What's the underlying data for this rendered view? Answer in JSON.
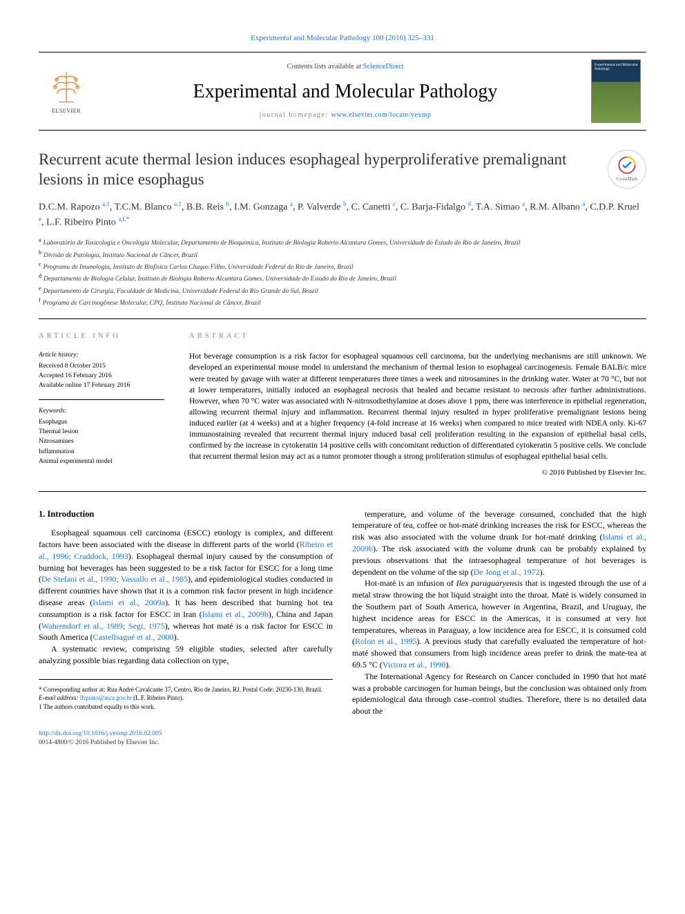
{
  "top_citation": "Experimental and Molecular Pathology 100 (2016) 325–331",
  "masthead": {
    "contents_prefix": "Contents lists available at ",
    "contents_link": "ScienceDirect",
    "journal_name": "Experimental and Molecular Pathology",
    "homepage_label": "journal homepage: ",
    "homepage_url": "www.elsevier.com/locate/yexmp",
    "publisher": "ELSEVIER",
    "cover_text": "Experimental and Molecular Pathology"
  },
  "article": {
    "title": "Recurrent acute thermal lesion induces esophageal hyperproliferative premalignant lesions in mice esophagus",
    "crossmark_label": "CrossMark",
    "authors_html": "D.C.M. Rapozo <sup>a,1</sup>, T.C.M. Blanco <sup>a,1</sup>, B.B. Reis <sup>b</sup>, I.M. Gonzaga <sup>a</sup>, P. Valverde <sup>b</sup>, C. Canetti <sup>c</sup>, C. Barja-Fidalgo <sup>d</sup>, T.A. Simao <sup>a</sup>, R.M. Albano <sup>a</sup>, C.D.P. Kruel <sup>e</sup>, L.F. Ribeiro Pinto <sup>a,f,*</sup>",
    "affiliations": [
      {
        "sup": "a",
        "text": "Laboratório de Toxicologia e Oncologia Molecular, Departamento de Bioquímica, Instituto de Biologia Roberto Alcantara Gomes, Universidade do Estado do Rio de Janeiro, Brazil"
      },
      {
        "sup": "b",
        "text": "Divisão de Patologia, Instituto Nacional de Câncer, Brazil"
      },
      {
        "sup": "c",
        "text": "Programa de Imunologia, Instituto de Biofísica Carlos Chagas Filho, Universidade Federal do Rio de Janeiro, Brazil"
      },
      {
        "sup": "d",
        "text": "Departamento de Biologia Celular, Instituto de Biologia Roberto Alcantara Gomes, Universidade do Estado do Rio de Janeiro, Brazil"
      },
      {
        "sup": "e",
        "text": "Departamento de Cirurgia, Faculdade de Medicina, Universidade Federal do Rio Grande do Sul, Brazil"
      },
      {
        "sup": "f",
        "text": "Programa de Carcinogênese Molecular, CPQ, Instituto Nacional de Câncer, Brazil"
      }
    ]
  },
  "info": {
    "heading": "ARTICLE INFO",
    "history_heading": "Article history:",
    "history": [
      "Received 8 October 2015",
      "Accepted 16 February 2016",
      "Available online 17 February 2016"
    ],
    "keywords_heading": "Keywords:",
    "keywords": [
      "Esophagus",
      "Thermal lesion",
      "Nitrosamines",
      "Inflammation",
      "Animal experimental model"
    ]
  },
  "abstract": {
    "heading": "ABSTRACT",
    "text": "Hot beverage consumption is a risk factor for esophageal squamous cell carcinoma, but the underlying mechanisms are still unknown. We developed an experimental mouse model to understand the mechanism of thermal lesion to esophageal carcinogenesis. Female BALB/c mice were treated by gavage with water at different temperatures three times a week and nitrosamines in the drinking water. Water at 70 °C, but not at lower temperatures, initially induced an esophageal necrosis that healed and became resistant to necrosis after further administrations. However, when 70 °C water was associated with N-nitrosodiethylamine at doses above 1 ppm, there was interference in epithelial regeneration, allowing recurrent thermal injury and inflammation. Recurrent thermal injury resulted in hyper proliferative premalignant lesions being induced earlier (at 4 weeks) and at a higher frequency (4-fold increase at 16 weeks) when compared to mice treated with NDEA only. Ki-67 immunostaining revealed that recurrent thermal injury induced basal cell proliferation resulting in the expansion of epithelial basal cells, confirmed by the increase in cytokeratin 14 positive cells with concomitant reduction of differentiated cytokeratin 5 positive cells. We conclude that recurrent thermal lesion may act as a tumor promoter though a strong proliferation stimulus of esophageal epithelial basal cells.",
    "copyright": "© 2016 Published by Elsevier Inc."
  },
  "body": {
    "section_heading": "1. Introduction",
    "col1": [
      "Esophageal squamous cell carcinoma (ESCC) etiology is complex, and different factors have been associated with the disease in different parts of the world (<span class='cite'>Ribeiro et al., 1996; Craddock, 1993</span>). Esophageal thermal injury caused by the consumption of burning hot beverages has been suggested to be a risk factor for ESCC for a long time (<span class='cite'>De Stefani et al., 1990; Vassallo et al., 1985</span>), and epidemiological studies conducted in different countries have shown that it is a common risk factor present in high incidence disease areas (<span class='cite'>Islami et al., 2009a</span>). It has been described that burning hot tea consumption is a risk factor for ESCC in Iran (<span class='cite'>Islami et al., 2009b</span>), China and Japan (<span class='cite'>Wahrendorf et al., 1989; Segi, 1975</span>), whereas hot maté is a risk factor for ESCC in South America (<span class='cite'>Castellsagué et al., 2000</span>).",
      "A systematic review, comprising 59 eligible studies, selected after carefully analyzing possible bias regarding data collection on type,"
    ],
    "col2": [
      "temperature, and volume of the beverage consumed, concluded that the high temperature of tea, coffee or hot-maté drinking increases the risk for ESCC, whereas the risk was also associated with the volume drunk for hot-maté drinking (<span class='cite'>Islami et al., 2009b</span>). The risk associated with the volume drunk can be probably explained by previous observations that the intraesophageal temperature of hot beverages is dependent on the volume of the sip (<span class='cite'>De Jong et al., 1972</span>).",
      "Hot-maté is an infusion of <i>Ilex paraguaryensis</i> that is ingested through the use of a metal straw throwing the hot liquid straight into the throat. Maté is widely consumed in the Southern part of South America, however in Argentina, Brazil, and Uruguay, the highest incidence areas for ESCC in the Americas, it is consumed at very hot temperatures, whereas in Paraguay, a low incidence area for ESCC, it is consumed cold (<span class='cite'>Rolon et al., 1995</span>). A previous study that carefully evaluated the temperature of hot-maté showed that consumers from high incidence areas prefer to drink the mate-tea at 69.5 °C (<span class='cite'>Victora et al., 1990</span>).",
      "The International Agency for Research on Cancer concluded in 1990 that hot maté was a probable carcinogen for human beings, but the conclusion was obtained only from epidemiological data through case–control studies. Therefore, there is no detailed data about the"
    ]
  },
  "footnotes": {
    "corresponding": "* Corresponding author at: Rua André Cavalcante 37, Centro, Rio de Janeiro, RJ, Postal Code: 20230-130, Brazil.",
    "email_label": "E-mail address: ",
    "email": "lfrpinto@inca.gov.br",
    "email_attribution": " (L.F. Ribeiro Pinto).",
    "equal": "1  The authors contributed equally to this work."
  },
  "footer": {
    "doi": "http://dx.doi.org/10.1016/j.yexmp.2016.02.005",
    "issn_line": "0014-4800/© 2016 Published by Elsevier Inc."
  }
}
